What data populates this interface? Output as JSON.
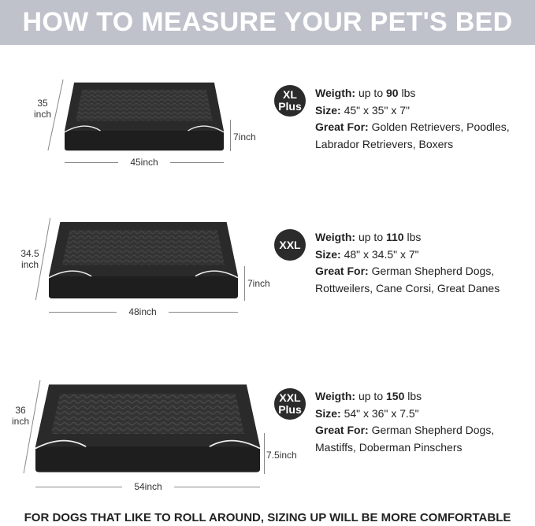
{
  "header": {
    "title": "HOW TO MEASURE YOUR PET'S BED",
    "background": "#bfc2cb"
  },
  "sizes": [
    {
      "badge": [
        "XL",
        "Plus"
      ],
      "width_label": "45inch",
      "height_label": "7inch",
      "depth_label": [
        "35",
        "inch"
      ],
      "weight_label": "Weigth:",
      "weight_prefix": "up to",
      "weight_value": "90",
      "weight_unit": "lbs",
      "size_label": "Size:",
      "size_value": "45\" x 35\" x 7\"",
      "great_for_label": "Great For:",
      "great_for_line1": "Golden Retrievers, Poodles,",
      "great_for_line2": "Labrador Retrievers, Boxers"
    },
    {
      "badge": [
        "XXL",
        ""
      ],
      "width_label": "48inch",
      "height_label": "7inch",
      "depth_label": [
        "34.5",
        "inch"
      ],
      "weight_label": "Weigth:",
      "weight_prefix": "up to",
      "weight_value": "110",
      "weight_unit": "lbs",
      "size_label": "Size:",
      "size_value": "48\" x 34.5\" x 7\"",
      "great_for_label": "Great For:",
      "great_for_line1": "German Shepherd Dogs,",
      "great_for_line2": "Rottweilers, Cane Corsi, Great Danes"
    },
    {
      "badge": [
        "XXL",
        "Plus"
      ],
      "width_label": "54inch",
      "height_label": "7.5inch",
      "depth_label": [
        "36",
        "inch"
      ],
      "weight_label": "Weigth:",
      "weight_prefix": "up to",
      "weight_value": "150",
      "weight_unit": "lbs",
      "size_label": "Size:",
      "size_value": "54\" x 36\" x 7.5\"",
      "great_for_label": "Great For:",
      "great_for_line1": "German Shepherd Dogs,",
      "great_for_line2": "Mastiffs, Doberman Pinschers"
    }
  ],
  "footer": {
    "text": "FOR DOGS THAT LIKE TO ROLL AROUND, SIZING UP WILL BE MORE COMFORTABLE"
  }
}
